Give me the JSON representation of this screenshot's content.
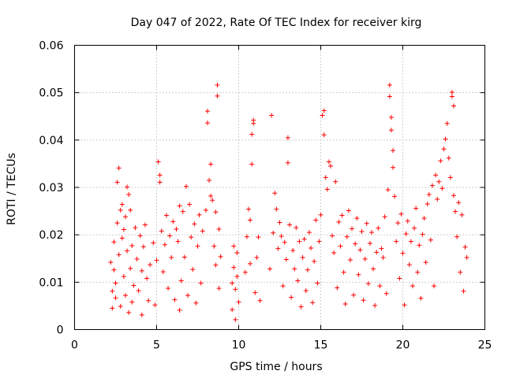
{
  "chart_data": {
    "type": "scatter",
    "title": "Day 047 of 2022, Rate Of TEC Index for receiver kirg",
    "xlabel": "GPS time / hours",
    "ylabel": "ROTI / TECUs",
    "xlim": [
      0,
      25
    ],
    "ylim": [
      0,
      0.06
    ],
    "xticks": [
      0,
      5,
      10,
      15,
      20,
      25
    ],
    "xtick_labels": [
      "0",
      "5",
      "10",
      "15",
      "20",
      "25"
    ],
    "yticks": [
      0,
      0.01,
      0.02,
      0.03,
      0.04,
      0.05,
      0.06
    ],
    "ytick_labels": [
      "0",
      "0.01",
      "0.02",
      "0.03",
      "0.04",
      "0.05",
      "0.06"
    ],
    "grid": true,
    "marker": "plus",
    "color": "#ff0000",
    "series": [
      {
        "points": [
          [
            2.2,
            0.0142
          ],
          [
            2.3,
            0.0081
          ],
          [
            2.3,
            0.0045
          ],
          [
            2.4,
            0.0185
          ],
          [
            2.4,
            0.0126
          ],
          [
            2.5,
            0.0067
          ],
          [
            2.5,
            0.0098
          ],
          [
            2.6,
            0.0311
          ],
          [
            2.6,
            0.0225
          ],
          [
            2.7,
            0.0341
          ],
          [
            2.7,
            0.0158
          ],
          [
            2.8,
            0.0252
          ],
          [
            2.8,
            0.0049
          ],
          [
            2.9,
            0.0193
          ],
          [
            2.9,
            0.0264
          ],
          [
            3.0,
            0.0112
          ],
          [
            3.0,
            0.0211
          ],
          [
            3.1,
            0.0238
          ],
          [
            3.1,
            0.0072
          ],
          [
            3.2,
            0.0301
          ],
          [
            3.2,
            0.0166
          ],
          [
            3.3,
            0.0285
          ],
          [
            3.3,
            0.0036
          ],
          [
            3.4,
            0.0252
          ],
          [
            3.4,
            0.0129
          ],
          [
            3.5,
            0.0177
          ],
          [
            3.5,
            0.0058
          ],
          [
            3.6,
            0.0093
          ],
          [
            3.7,
            0.0215
          ],
          [
            3.8,
            0.0149
          ],
          [
            3.9,
            0.0082
          ],
          [
            4.0,
            0.0198
          ],
          [
            4.1,
            0.0124
          ],
          [
            4.1,
            0.0031
          ],
          [
            4.2,
            0.0175
          ],
          [
            4.3,
            0.0221
          ],
          [
            4.4,
            0.0108
          ],
          [
            4.5,
            0.0061
          ],
          [
            4.6,
            0.0137
          ],
          [
            4.8,
            0.0183
          ],
          [
            4.9,
            0.0052
          ],
          [
            5.0,
            0.0146
          ],
          [
            5.1,
            0.0354
          ],
          [
            5.2,
            0.0326
          ],
          [
            5.2,
            0.0311
          ],
          [
            5.3,
            0.0208
          ],
          [
            5.4,
            0.0122
          ],
          [
            5.5,
            0.0179
          ],
          [
            5.6,
            0.0241
          ],
          [
            5.7,
            0.0087
          ],
          [
            5.8,
            0.0198
          ],
          [
            5.9,
            0.0152
          ],
          [
            6.0,
            0.0228
          ],
          [
            6.1,
            0.0063
          ],
          [
            6.2,
            0.0212
          ],
          [
            6.3,
            0.0186
          ],
          [
            6.4,
            0.0261
          ],
          [
            6.4,
            0.0041
          ],
          [
            6.5,
            0.0103
          ],
          [
            6.6,
            0.0249
          ],
          [
            6.7,
            0.0153
          ],
          [
            6.8,
            0.0302
          ],
          [
            6.9,
            0.0072
          ],
          [
            7.0,
            0.0264
          ],
          [
            7.1,
            0.0195
          ],
          [
            7.2,
            0.0127
          ],
          [
            7.3,
            0.0223
          ],
          [
            7.4,
            0.0056
          ],
          [
            7.5,
            0.0176
          ],
          [
            7.6,
            0.0242
          ],
          [
            7.7,
            0.0098
          ],
          [
            7.8,
            0.0208
          ],
          [
            8.0,
            0.0252
          ],
          [
            8.1,
            0.0461
          ],
          [
            8.1,
            0.0436
          ],
          [
            8.2,
            0.0315
          ],
          [
            8.3,
            0.0349
          ],
          [
            8.3,
            0.0282
          ],
          [
            8.4,
            0.0273
          ],
          [
            8.5,
            0.0176
          ],
          [
            8.6,
            0.0248
          ],
          [
            8.6,
            0.0136
          ],
          [
            8.7,
            0.0516
          ],
          [
            8.7,
            0.0493
          ],
          [
            8.8,
            0.0087
          ],
          [
            8.8,
            0.0212
          ],
          [
            8.9,
            0.0154
          ],
          [
            9.6,
            0.0098
          ],
          [
            9.6,
            0.0042
          ],
          [
            9.7,
            0.0176
          ],
          [
            9.7,
            0.0131
          ],
          [
            9.8,
            0.0021
          ],
          [
            9.8,
            0.0085
          ],
          [
            9.9,
            0.0162
          ],
          [
            9.9,
            0.0112
          ],
          [
            10.0,
            0.0058
          ],
          [
            10.4,
            0.0121
          ],
          [
            10.5,
            0.0196
          ],
          [
            10.6,
            0.0254
          ],
          [
            10.7,
            0.0231
          ],
          [
            10.7,
            0.0139
          ],
          [
            10.8,
            0.0349
          ],
          [
            10.8,
            0.0412
          ],
          [
            10.9,
            0.0442
          ],
          [
            10.9,
            0.0435
          ],
          [
            11.0,
            0.0078
          ],
          [
            11.1,
            0.0152
          ],
          [
            11.2,
            0.0195
          ],
          [
            11.3,
            0.0061
          ],
          [
            11.9,
            0.0128
          ],
          [
            12.0,
            0.0452
          ],
          [
            12.1,
            0.0204
          ],
          [
            12.2,
            0.0288
          ],
          [
            12.3,
            0.0254
          ],
          [
            12.4,
            0.0171
          ],
          [
            12.5,
            0.0226
          ],
          [
            12.6,
            0.0197
          ],
          [
            12.7,
            0.0092
          ],
          [
            12.8,
            0.0184
          ],
          [
            12.9,
            0.0148
          ],
          [
            13.0,
            0.0405
          ],
          [
            13.0,
            0.0352
          ],
          [
            13.1,
            0.0221
          ],
          [
            13.2,
            0.0068
          ],
          [
            13.3,
            0.0167
          ],
          [
            13.4,
            0.0128
          ],
          [
            13.5,
            0.0215
          ],
          [
            13.6,
            0.0103
          ],
          [
            13.7,
            0.0186
          ],
          [
            13.8,
            0.0048
          ],
          [
            13.9,
            0.0152
          ],
          [
            14.0,
            0.0191
          ],
          [
            14.1,
            0.0082
          ],
          [
            14.2,
            0.0126
          ],
          [
            14.3,
            0.0205
          ],
          [
            14.4,
            0.0172
          ],
          [
            14.5,
            0.0057
          ],
          [
            14.6,
            0.0144
          ],
          [
            14.7,
            0.0231
          ],
          [
            14.8,
            0.0098
          ],
          [
            14.9,
            0.0186
          ],
          [
            15.0,
            0.0242
          ],
          [
            15.1,
            0.0452
          ],
          [
            15.2,
            0.0411
          ],
          [
            15.2,
            0.0462
          ],
          [
            15.3,
            0.0321
          ],
          [
            15.4,
            0.0296
          ],
          [
            15.5,
            0.0354
          ],
          [
            15.6,
            0.0345
          ],
          [
            15.7,
            0.0198
          ],
          [
            15.8,
            0.0162
          ],
          [
            15.9,
            0.0312
          ],
          [
            16.0,
            0.0088
          ],
          [
            16.1,
            0.0227
          ],
          [
            16.2,
            0.0176
          ],
          [
            16.3,
            0.0241
          ],
          [
            16.4,
            0.0121
          ],
          [
            16.5,
            0.0054
          ],
          [
            16.6,
            0.0196
          ],
          [
            16.7,
            0.0251
          ],
          [
            16.8,
            0.0147
          ],
          [
            16.9,
            0.0213
          ],
          [
            17.0,
            0.0073
          ],
          [
            17.1,
            0.0181
          ],
          [
            17.2,
            0.0235
          ],
          [
            17.3,
            0.0116
          ],
          [
            17.4,
            0.0168
          ],
          [
            17.5,
            0.0207
          ],
          [
            17.6,
            0.0062
          ],
          [
            17.7,
            0.0149
          ],
          [
            17.8,
            0.0224
          ],
          [
            17.9,
            0.0097
          ],
          [
            18.0,
            0.0182
          ],
          [
            18.1,
            0.0205
          ],
          [
            18.2,
            0.0128
          ],
          [
            18.3,
            0.0051
          ],
          [
            18.4,
            0.0163
          ],
          [
            18.5,
            0.0214
          ],
          [
            18.6,
            0.0092
          ],
          [
            18.7,
            0.0171
          ],
          [
            18.8,
            0.0152
          ],
          [
            18.9,
            0.0238
          ],
          [
            19.0,
            0.0076
          ],
          [
            19.1,
            0.0295
          ],
          [
            19.2,
            0.0516
          ],
          [
            19.2,
            0.0492
          ],
          [
            19.3,
            0.0448
          ],
          [
            19.3,
            0.0421
          ],
          [
            19.4,
            0.0378
          ],
          [
            19.4,
            0.0342
          ],
          [
            19.5,
            0.0281
          ],
          [
            19.6,
            0.0186
          ],
          [
            19.7,
            0.0225
          ],
          [
            19.8,
            0.0108
          ],
          [
            19.9,
            0.0244
          ],
          [
            20.0,
            0.0161
          ],
          [
            20.1,
            0.0052
          ],
          [
            20.2,
            0.0202
          ],
          [
            20.3,
            0.0229
          ],
          [
            20.4,
            0.0137
          ],
          [
            20.5,
            0.0186
          ],
          [
            20.6,
            0.0092
          ],
          [
            20.7,
            0.0214
          ],
          [
            20.8,
            0.0256
          ],
          [
            20.9,
            0.0121
          ],
          [
            21.0,
            0.0178
          ],
          [
            21.1,
            0.0066
          ],
          [
            21.2,
            0.0201
          ],
          [
            21.3,
            0.0235
          ],
          [
            21.4,
            0.0142
          ],
          [
            21.5,
            0.0265
          ],
          [
            21.6,
            0.0285
          ],
          [
            21.7,
            0.0189
          ],
          [
            21.8,
            0.0304
          ],
          [
            21.9,
            0.0092
          ],
          [
            22.0,
            0.0326
          ],
          [
            22.1,
            0.0275
          ],
          [
            22.2,
            0.0312
          ],
          [
            22.3,
            0.0356
          ],
          [
            22.4,
            0.0298
          ],
          [
            22.5,
            0.0381
          ],
          [
            22.6,
            0.0402
          ],
          [
            22.7,
            0.0435
          ],
          [
            22.8,
            0.0362
          ],
          [
            22.9,
            0.0321
          ],
          [
            23.0,
            0.0501
          ],
          [
            23.0,
            0.0492
          ],
          [
            23.1,
            0.0472
          ],
          [
            23.1,
            0.0283
          ],
          [
            23.2,
            0.0249
          ],
          [
            23.3,
            0.0196
          ],
          [
            23.4,
            0.0268
          ],
          [
            23.5,
            0.0121
          ],
          [
            23.6,
            0.0242
          ],
          [
            23.7,
            0.0081
          ],
          [
            23.8,
            0.0174
          ],
          [
            23.9,
            0.0152
          ]
        ]
      }
    ]
  }
}
